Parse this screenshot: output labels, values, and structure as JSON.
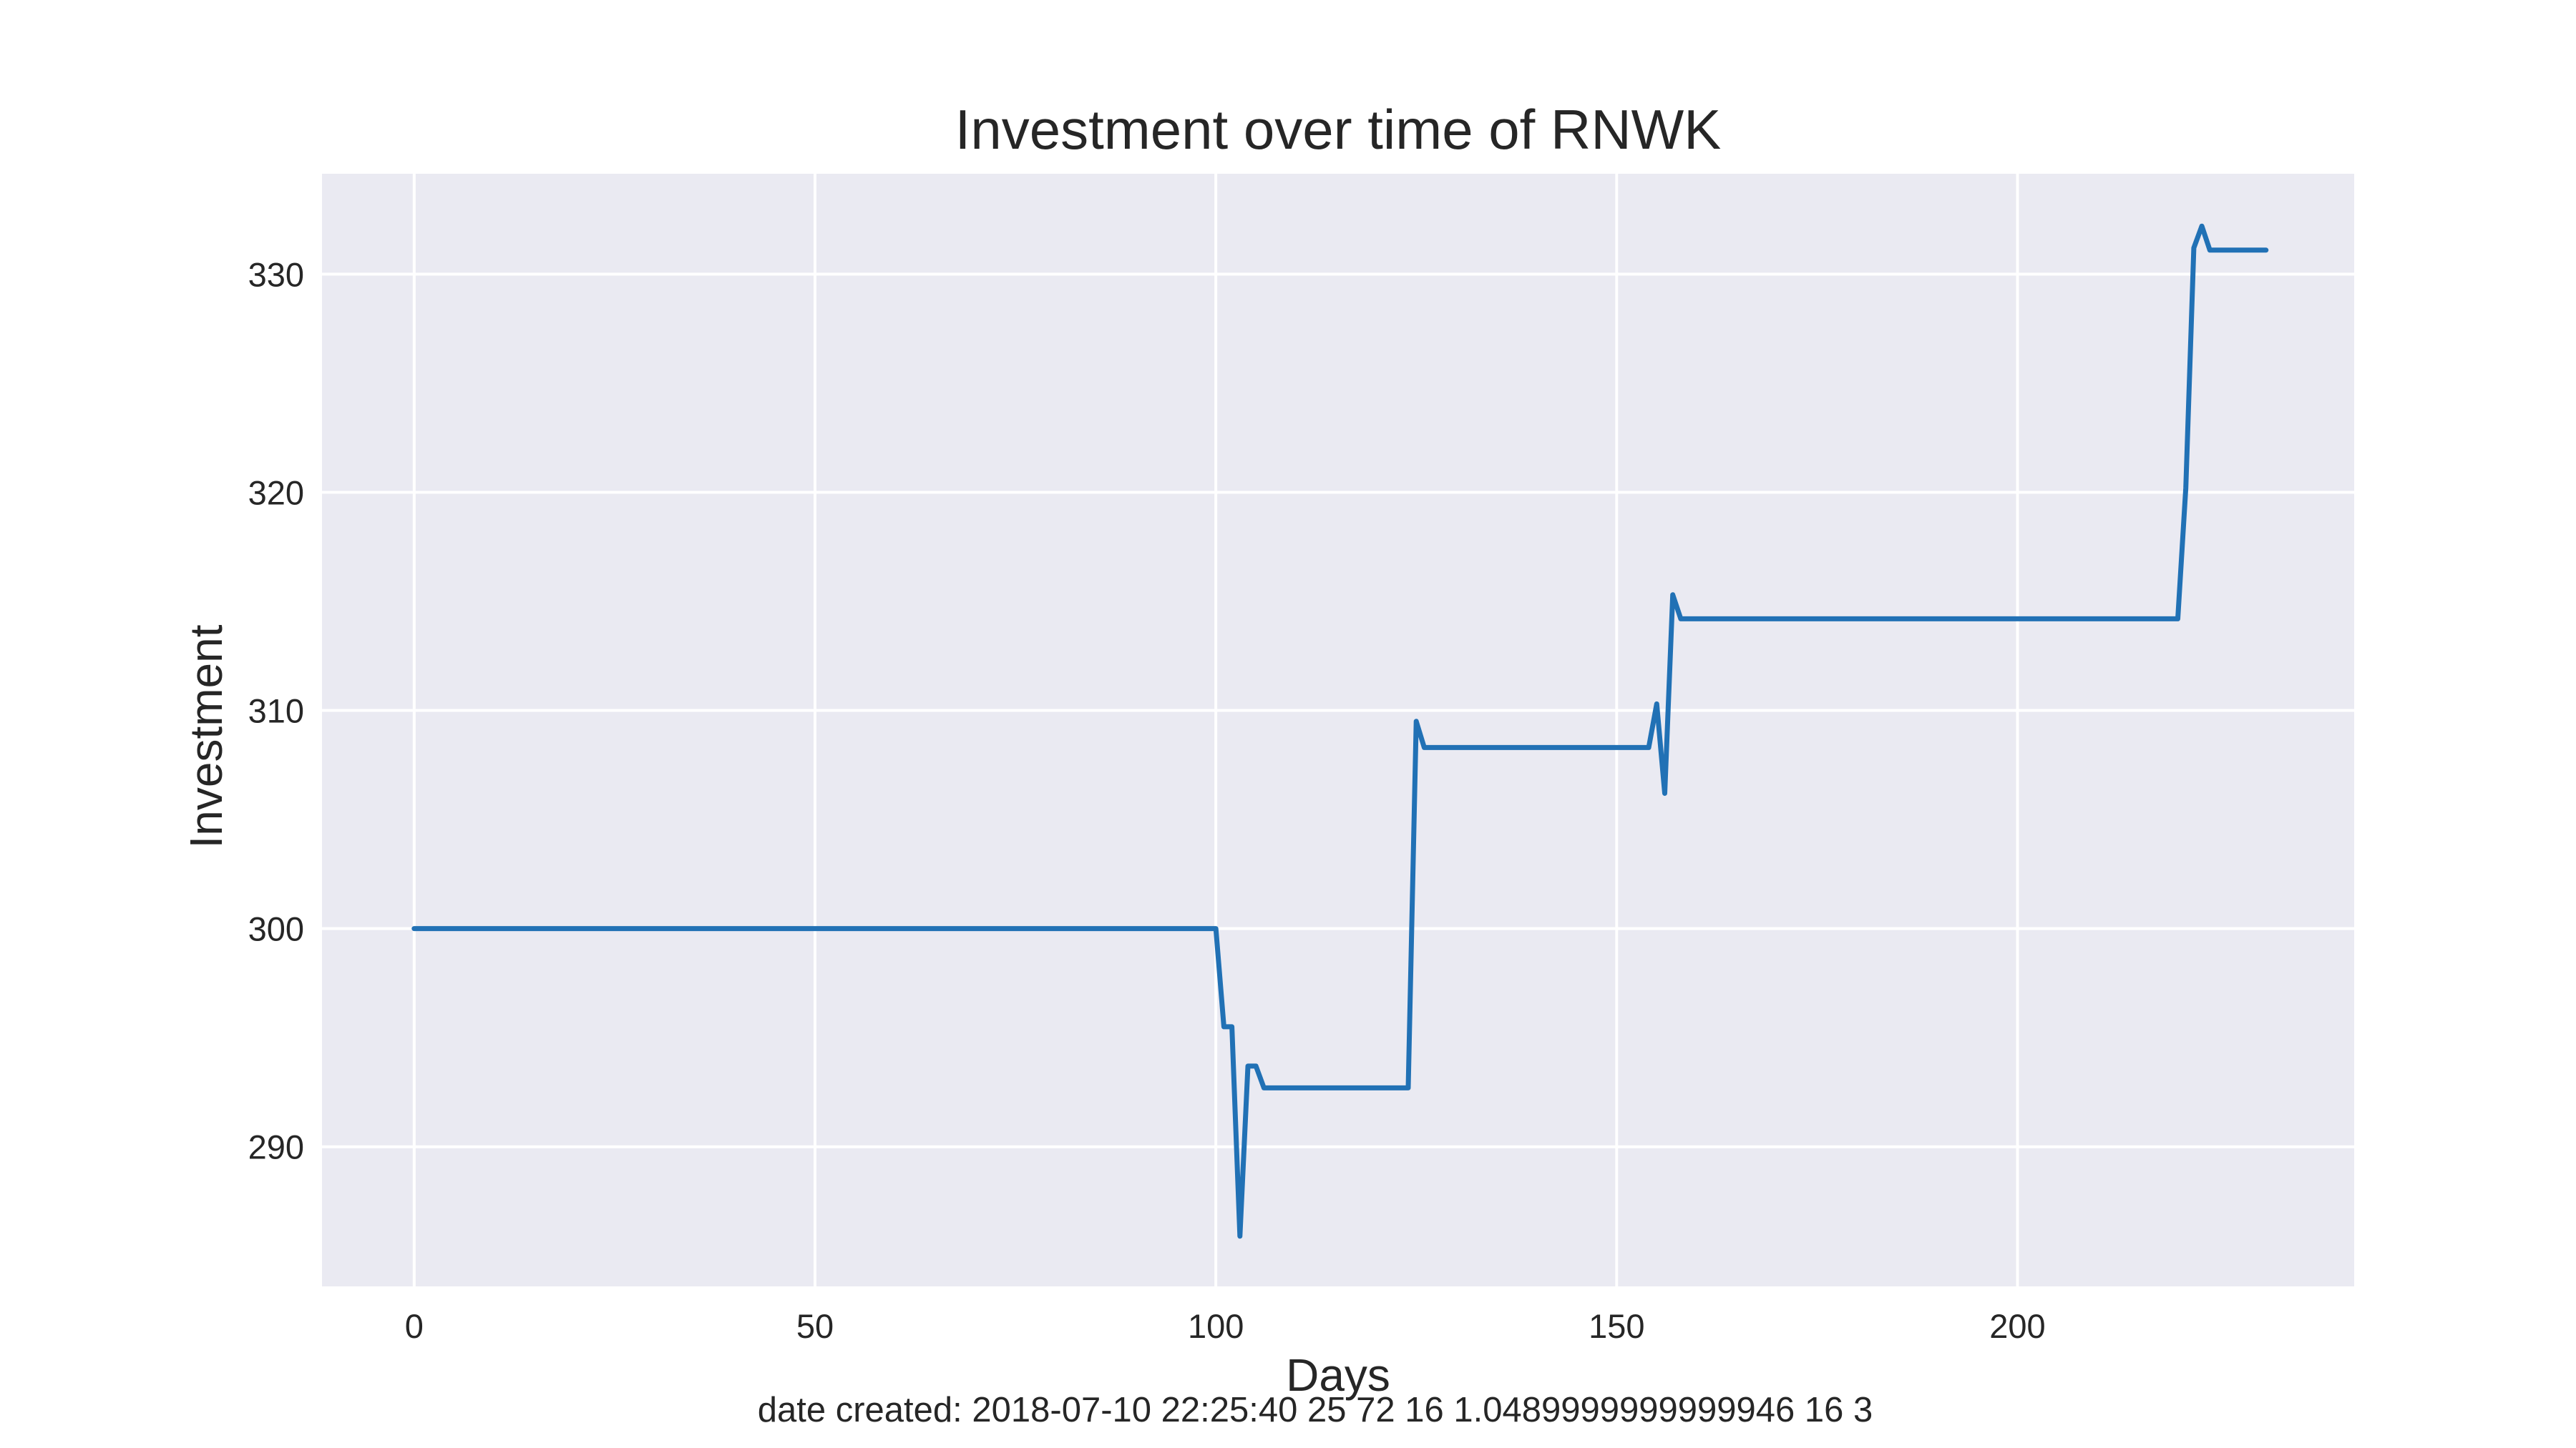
{
  "chart_data": {
    "type": "line",
    "title": "Investment over time of RNWK",
    "xlabel": "Days",
    "ylabel": "Investment",
    "xlim": [
      -11.5,
      242
    ],
    "ylim": [
      283.6,
      334.6
    ],
    "xticks": [
      0,
      50,
      100,
      150,
      200
    ],
    "yticks": [
      290,
      300,
      310,
      320,
      330
    ],
    "grid": true,
    "colors": {
      "background": "#eaeaf2",
      "grid": "#ffffff",
      "line": "#2171b5"
    },
    "series": [
      {
        "x": [
          0,
          100,
          101,
          102,
          103,
          104,
          105,
          106,
          107,
          124,
          125,
          126,
          154,
          155,
          156,
          157,
          158,
          220,
          221,
          222,
          223,
          224,
          231
        ],
        "y": [
          300,
          300,
          295.5,
          295.5,
          285.9,
          293.7,
          293.7,
          292.7,
          292.7,
          292.7,
          309.5,
          308.3,
          308.3,
          310.3,
          306.2,
          315.3,
          314.2,
          314.2,
          320.2,
          331.2,
          332.2,
          331.1,
          331.1
        ]
      }
    ]
  },
  "footer": "date created: 2018-07-10 22:25:40 25 72 16 1.0489999999999946 16 3"
}
